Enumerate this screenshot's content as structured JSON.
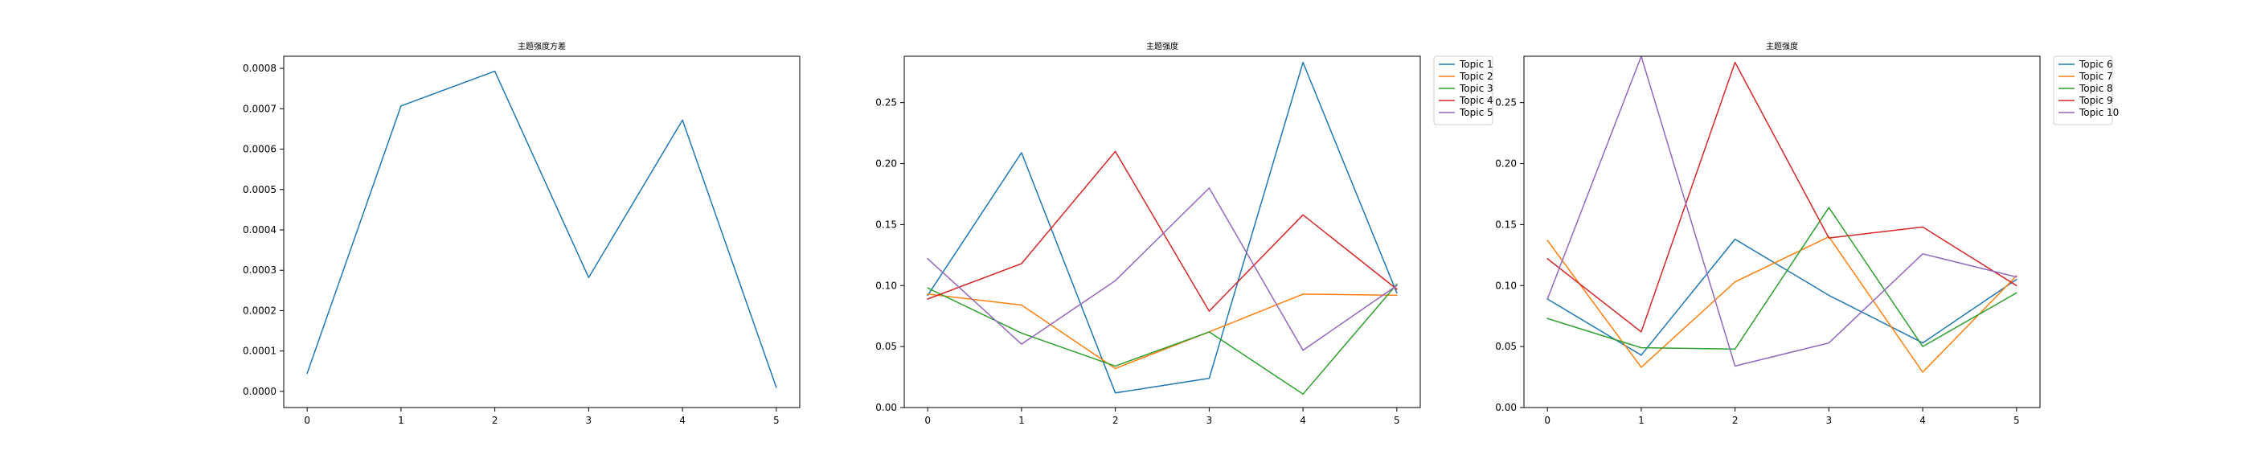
{
  "chart_data": [
    {
      "type": "line",
      "title": "主题强度方差",
      "xlabel": "",
      "ylabel": "",
      "x": [
        0,
        1,
        2,
        3,
        4,
        5
      ],
      "xlim": [
        -0.25,
        5.25
      ],
      "ylim": [
        -4e-05,
        0.00083
      ],
      "yticks": [
        0,
        0.0001,
        0.0002,
        0.0003,
        0.0004,
        0.0005,
        0.0006,
        0.0007,
        0.0008
      ],
      "ytick_labels": [
        "0.0000",
        "0.0001",
        "0.0002",
        "0.0003",
        "0.0004",
        "0.0005",
        "0.0006",
        "0.0007",
        "0.0008"
      ],
      "xticks": [
        0,
        1,
        2,
        3,
        4,
        5
      ],
      "xtick_labels": [
        "0",
        "1",
        "2",
        "3",
        "4",
        "5"
      ],
      "grid": false,
      "legend": null,
      "series": [
        {
          "values": [
            4.5e-05,
            0.000707,
            0.000793,
            0.000282,
            0.000672,
            1e-05
          ],
          "color": "#1f77b4"
        }
      ]
    },
    {
      "type": "line",
      "title": "主题强度",
      "xlabel": "",
      "ylabel": "",
      "x": [
        0,
        1,
        2,
        3,
        4,
        5
      ],
      "xlim": [
        -0.25,
        5.25
      ],
      "ylim": [
        0,
        0.288
      ],
      "yticks": [
        0,
        0.05,
        0.1,
        0.15,
        0.2,
        0.25
      ],
      "ytick_labels": [
        "0.00",
        "0.05",
        "0.10",
        "0.15",
        "0.20",
        "0.25"
      ],
      "xticks": [
        0,
        1,
        2,
        3,
        4,
        5
      ],
      "xtick_labels": [
        "0",
        "1",
        "2",
        "3",
        "4",
        "5"
      ],
      "grid": false,
      "legend": "outside-top-right",
      "series": [
        {
          "name": "Topic 1",
          "values": [
            0.092,
            0.209,
            0.012,
            0.024,
            0.283,
            0.094
          ],
          "color": "#1f77b4"
        },
        {
          "name": "Topic 2",
          "values": [
            0.093,
            0.084,
            0.032,
            0.062,
            0.093,
            0.092
          ],
          "color": "#ff7f0e"
        },
        {
          "name": "Topic 3",
          "values": [
            0.098,
            0.061,
            0.034,
            0.062,
            0.011,
            0.101
          ],
          "color": "#2ca02c"
        },
        {
          "name": "Topic 4",
          "values": [
            0.089,
            0.118,
            0.21,
            0.079,
            0.158,
            0.097
          ],
          "color": "#d62728"
        },
        {
          "name": "Topic 5",
          "values": [
            0.122,
            0.052,
            0.104,
            0.18,
            0.047,
            0.1
          ],
          "color": "#9467bd"
        }
      ]
    },
    {
      "type": "line",
      "title": "主题强度",
      "xlabel": "",
      "ylabel": "",
      "x": [
        0,
        1,
        2,
        3,
        4,
        5
      ],
      "xlim": [
        -0.25,
        5.25
      ],
      "ylim": [
        0,
        0.288
      ],
      "yticks": [
        0,
        0.05,
        0.1,
        0.15,
        0.2,
        0.25
      ],
      "ytick_labels": [
        "0.00",
        "0.05",
        "0.10",
        "0.15",
        "0.20",
        "0.25"
      ],
      "xticks": [
        0,
        1,
        2,
        3,
        4,
        5
      ],
      "xtick_labels": [
        "0",
        "1",
        "2",
        "3",
        "4",
        "5"
      ],
      "grid": false,
      "legend": "outside-top-right",
      "series": [
        {
          "name": "Topic 6",
          "values": [
            0.089,
            0.043,
            0.138,
            0.092,
            0.053,
            0.105
          ],
          "color": "#1f77b4"
        },
        {
          "name": "Topic 7",
          "values": [
            0.137,
            0.033,
            0.103,
            0.14,
            0.029,
            0.108
          ],
          "color": "#ff7f0e"
        },
        {
          "name": "Topic 8",
          "values": [
            0.073,
            0.049,
            0.048,
            0.164,
            0.05,
            0.094
          ],
          "color": "#2ca02c"
        },
        {
          "name": "Topic 9",
          "values": [
            0.122,
            0.062,
            0.283,
            0.139,
            0.148,
            0.1
          ],
          "color": "#d62728"
        },
        {
          "name": "Topic 10",
          "values": [
            0.089,
            0.288,
            0.034,
            0.053,
            0.126,
            0.107
          ],
          "color": "#9467bd"
        }
      ]
    }
  ]
}
